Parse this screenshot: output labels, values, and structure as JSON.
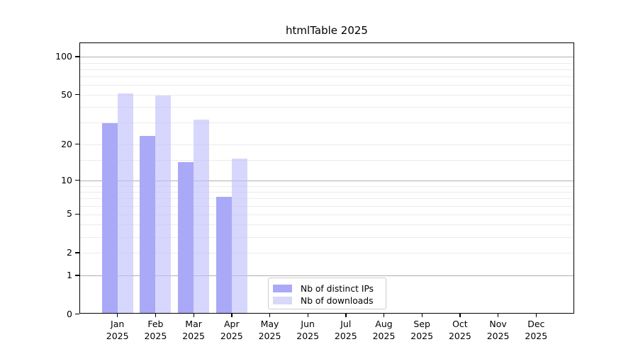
{
  "chart_data": {
    "type": "bar",
    "title": "htmlTable 2025",
    "scale": "log10(1+v) pseudo-log y axis, 0 at baseline",
    "categories": [
      "Jan",
      "Feb",
      "Mar",
      "Apr",
      "May",
      "Jun",
      "Jul",
      "Aug",
      "Sep",
      "Oct",
      "Nov",
      "Dec"
    ],
    "year_label": "2025",
    "series": [
      {
        "name": "Nb of distinct IPs",
        "key": "distinct-ips",
        "fill": "#a9a9f8",
        "swatch": "#a9a9f8",
        "values": [
          29,
          23,
          14,
          7,
          null,
          null,
          null,
          null,
          null,
          null,
          null,
          null
        ]
      },
      {
        "name": "Nb of downloads",
        "key": "downloads",
        "fill": "rgba(190,190,252,0.62)",
        "swatch": "#d8d8f8",
        "values": [
          50,
          48,
          31,
          15,
          null,
          null,
          null,
          null,
          null,
          null,
          null,
          null
        ]
      }
    ],
    "y_axis": {
      "ticks": [
        0,
        1,
        2,
        5,
        10,
        20,
        50,
        100
      ],
      "decade_gridlines": [
        1,
        10,
        100
      ],
      "light_gridlines": [
        2,
        5,
        3,
        4,
        6,
        7,
        8,
        9,
        15,
        20,
        30,
        40,
        50,
        60,
        70,
        80,
        90
      ],
      "y_top": 128
    },
    "legend_position": "bottom-center inside plot",
    "colors": {
      "grid_major": "#b0b0b0",
      "grid_minor": "#ececec",
      "axis": "#000000",
      "legend_border": "#cccccc",
      "text": "#000000"
    }
  }
}
